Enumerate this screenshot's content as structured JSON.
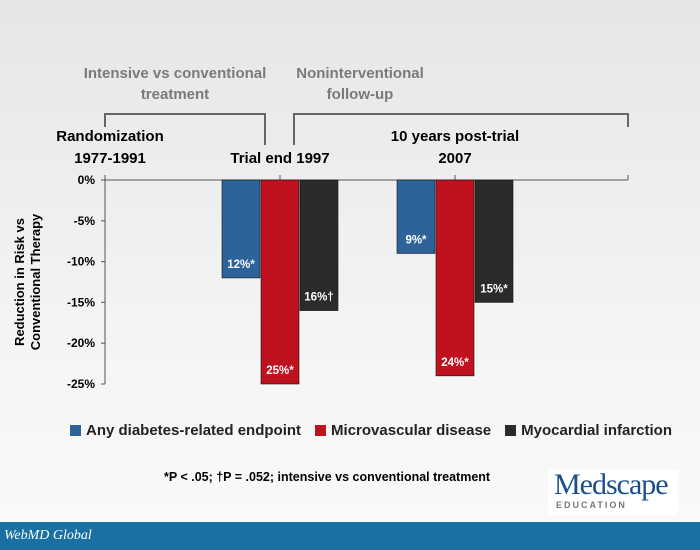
{
  "headers": {
    "phase1": "Intensive vs conventional treatment",
    "phase2": "Noninterventional follow-up"
  },
  "timepoints": {
    "t1": "Randomization 1977-1991",
    "t2": "Trial end 1997",
    "t3": "10 years post-trial 2007"
  },
  "chart_data": {
    "type": "bar",
    "ylabel": "Reduction in Risk vs Conventional Therapy",
    "ylim": [
      -25,
      0
    ],
    "yticks": [
      "0%",
      "-5%",
      "-10%",
      "-15%",
      "-20%",
      "-25%"
    ],
    "categories": [
      "Trial end 1997",
      "10 years post-trial 2007"
    ],
    "series": [
      {
        "name": "Any diabetes-related endpoint",
        "color": "#2e6399",
        "values": [
          -12,
          -9
        ],
        "labels": [
          "12%*",
          "9%*"
        ]
      },
      {
        "name": "Microvascular disease",
        "color": "#c0111f",
        "values": [
          -25,
          -24
        ],
        "labels": [
          "25%*",
          "24%*"
        ]
      },
      {
        "name": "Myocardial infarction",
        "color": "#2b2b2b",
        "values": [
          -16,
          -15
        ],
        "labels": [
          "16%†",
          "15%*"
        ]
      }
    ],
    "grid": false,
    "legend": "bottom"
  },
  "footnote": "*P < .05; †P = .052; intensive vs conventional treatment",
  "logo": {
    "name": "Medscape",
    "sub": "EDUCATION"
  },
  "footer": "WebMD Global",
  "colors": {
    "footer_bar": "#1a6fa3"
  }
}
